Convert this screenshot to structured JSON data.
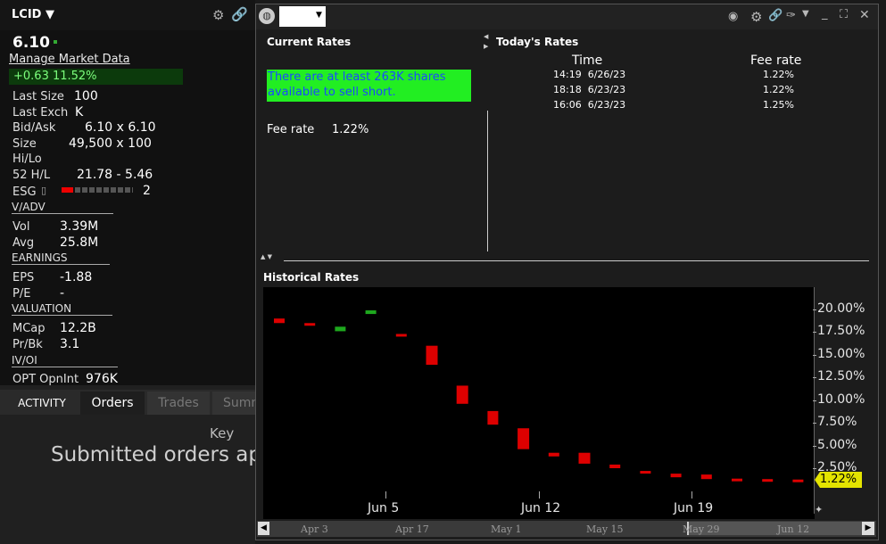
{
  "left": {
    "symbol": "LCID",
    "price": "6.10",
    "manage_link": "Manage Market Data",
    "change": "+0.63  11.52%",
    "rows": [
      {
        "label": "Last Size",
        "value": "100"
      },
      {
        "label": "Last Exch",
        "value": "K"
      },
      {
        "label": "Bid/Ask",
        "value": "6.10 x 6.10"
      },
      {
        "label": "Size",
        "value": "49,500 x 100"
      },
      {
        "label": "Hi/Lo",
        "value": ""
      },
      {
        "label": "52 H/L",
        "value": "21.78 - 5.46"
      },
      {
        "label": "ESG",
        "value": "2"
      }
    ],
    "sections": {
      "vadv": "V/ADV",
      "earnings": "EARNINGS",
      "valuation": "VALUATION",
      "ivoi": "IV/OI"
    },
    "vol": {
      "label": "Vol",
      "value": "3.39M"
    },
    "avg": {
      "label": "Avg",
      "value": "25.8M"
    },
    "eps": {
      "label": "EPS",
      "value": "-1.88"
    },
    "pe": {
      "label": "P/E",
      "value": "-"
    },
    "mcap": {
      "label": "MCap",
      "value": "12.2B"
    },
    "prbk": {
      "label": "Pr/Bk",
      "value": "3.1"
    },
    "opt": {
      "label": "OPT OpnInt",
      "value": "976K"
    }
  },
  "activity": {
    "tabs": [
      "ACTIVITY",
      "Orders",
      "Trades",
      "Summ"
    ],
    "key_label": "Key",
    "empty_message": "Submitted orders ap"
  },
  "window": {
    "current_rates_title": "Current Rates",
    "availability": "There are at least 263K shares available to sell short.",
    "fee_label": "Fee rate",
    "fee_value": "1.22%",
    "todays_title": "Today's Rates",
    "table_headers": [
      "Time",
      "Fee rate"
    ],
    "table_rows": [
      {
        "time": "14:19  6/26/23",
        "rate": "1.22%"
      },
      {
        "time": "18:18  6/23/23",
        "rate": "1.22%"
      },
      {
        "time": "16:06  6/23/23",
        "rate": "1.25%"
      }
    ],
    "historical_title": "Historical Rates",
    "current_badge": "1.22%"
  },
  "chart_data": {
    "type": "candlestick",
    "y_ticks": [
      "20.00%",
      "17.50%",
      "15.00%",
      "12.50%",
      "10.00%",
      "7.50%",
      "5.00%",
      "2.50%"
    ],
    "ylim": [
      0,
      22
    ],
    "x_ticks": [
      "Jun 5",
      "Jun 12",
      "Jun 19"
    ],
    "navigator_labels": [
      "Apr 3",
      "Apr 17",
      "May 1",
      "May 15",
      "May 29",
      "Jun 12"
    ],
    "candles": [
      {
        "open": 19.0,
        "close": 18.5,
        "color": "red"
      },
      {
        "open": 18.5,
        "close": 18.3,
        "color": "red"
      },
      {
        "open": 17.6,
        "close": 18.1,
        "color": "green"
      },
      {
        "open": 19.5,
        "close": 19.9,
        "color": "green"
      },
      {
        "open": 17.3,
        "close": 17.1,
        "color": "red"
      },
      {
        "open": 16.0,
        "close": 13.9,
        "color": "red"
      },
      {
        "open": 11.6,
        "close": 9.6,
        "color": "red"
      },
      {
        "open": 8.8,
        "close": 7.3,
        "color": "red"
      },
      {
        "open": 6.9,
        "close": 4.6,
        "color": "red"
      },
      {
        "open": 4.2,
        "close": 3.8,
        "color": "red"
      },
      {
        "open": 4.2,
        "close": 3.0,
        "color": "red"
      },
      {
        "open": 2.9,
        "close": 2.5,
        "color": "red"
      },
      {
        "open": 2.2,
        "close": 2.1,
        "color": "red"
      },
      {
        "open": 1.9,
        "close": 1.5,
        "color": "red"
      },
      {
        "open": 1.8,
        "close": 1.3,
        "color": "red"
      },
      {
        "open": 1.35,
        "close": 1.25,
        "color": "red"
      },
      {
        "open": 1.3,
        "close": 1.2,
        "color": "red"
      },
      {
        "open": 1.25,
        "close": 1.15,
        "color": "red"
      }
    ]
  }
}
